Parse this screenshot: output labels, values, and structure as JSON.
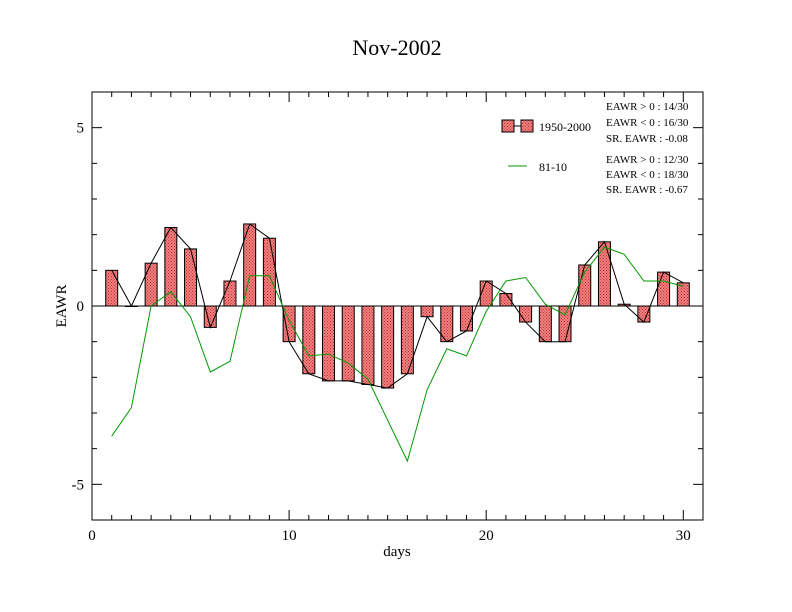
{
  "chart_data": {
    "type": "bar",
    "title": "Nov-2002",
    "xlabel": "days",
    "ylabel": "EAWR",
    "xlim": [
      0,
      31
    ],
    "ylim": [
      -6,
      6
    ],
    "x_ticks": [
      0,
      10,
      20,
      30
    ],
    "x_tick_labels": [
      "0",
      "10",
      "20",
      "30"
    ],
    "y_ticks": [
      -5,
      0,
      5
    ],
    "y_tick_labels": [
      "-5",
      "0",
      "5"
    ],
    "grid": false,
    "legend_position": "top-right",
    "bar_fill_color": "#f08080",
    "bar_pattern_color": "#c03030",
    "line_color": "#009900",
    "series": [
      {
        "name": "1950-2000",
        "kind": "bar",
        "x": [
          1,
          2,
          3,
          4,
          5,
          6,
          7,
          8,
          9,
          10,
          11,
          12,
          13,
          14,
          15,
          16,
          17,
          18,
          19,
          20,
          21,
          22,
          23,
          24,
          25,
          26,
          27,
          28,
          29,
          30
        ],
        "values": [
          1.0,
          0.0,
          1.2,
          2.2,
          1.6,
          -0.6,
          0.7,
          2.3,
          1.9,
          -1.0,
          -1.9,
          -2.1,
          -2.1,
          -2.2,
          -2.3,
          -1.9,
          -0.3,
          -1.0,
          -0.7,
          0.7,
          0.35,
          -0.45,
          -1.0,
          -1.0,
          1.15,
          1.8,
          0.05,
          -0.45,
          0.95,
          0.65
        ]
      },
      {
        "name": "81-10",
        "kind": "line",
        "x": [
          1,
          2,
          3,
          4,
          5,
          6,
          7,
          8,
          9,
          10,
          11,
          12,
          13,
          14,
          15,
          16,
          17,
          18,
          19,
          20,
          21,
          22,
          23,
          24,
          25,
          26,
          27,
          28,
          29,
          30
        ],
        "values": [
          -3.65,
          -2.85,
          0.0,
          0.4,
          -0.3,
          -1.85,
          -1.55,
          0.85,
          0.85,
          -0.4,
          -1.4,
          -1.35,
          -1.6,
          -2.05,
          -3.2,
          -4.35,
          -2.35,
          -1.2,
          -1.4,
          -0.15,
          0.7,
          0.8,
          0.05,
          -0.25,
          0.95,
          1.65,
          1.45,
          0.7,
          0.7,
          0.55
        ]
      }
    ],
    "annotations": {
      "bar_stats": [
        "EAWR > 0 : 14/30",
        "EAWR < 0 : 16/30",
        "SR. EAWR : -0.08"
      ],
      "line_stats": [
        "EAWR > 0 : 12/30",
        "EAWR < 0 : 18/30",
        "SR. EAWR : -0.67"
      ]
    }
  }
}
